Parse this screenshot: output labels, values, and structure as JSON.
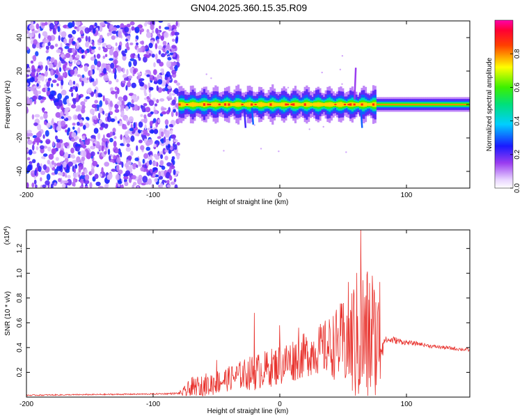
{
  "title": "GN04.2025.360.15.35.R09",
  "chart_data": [
    {
      "type": "heatmap",
      "title": "GN04.2025.360.15.35.R09",
      "xlabel": "Height of straight line (km)",
      "ylabel": "Frequency (Hz)",
      "xlim": [
        -200,
        150
      ],
      "ylim": [
        -50,
        50
      ],
      "xticks": [
        -200,
        -100,
        0,
        100
      ],
      "yticks": [
        -40,
        -20,
        0,
        20,
        40
      ],
      "colorbar": {
        "label": "Normalized spectral amplitude",
        "range": [
          0,
          1
        ],
        "ticks": [
          "0.0",
          "0.2",
          "0.4",
          "0.6",
          "0.8"
        ],
        "colormap": "rainbow (white-violet-blue-cyan-green-yellow-red-magenta)"
      },
      "regions": [
        {
          "name": "noise",
          "x_range": [
            -200,
            -80
          ],
          "freq_range": [
            -50,
            50
          ],
          "amplitude": "low (0.1-0.3)"
        },
        {
          "name": "signal band",
          "x_range": [
            -80,
            150
          ],
          "center_freq": 0,
          "half_width_hz": 3,
          "peak_amplitude": 1.0
        }
      ]
    },
    {
      "type": "line",
      "xlabel": "Height of straight line (km)",
      "ylabel": "SNR (10 * v/v)",
      "scale_label": "(x10",
      "scale_exp": "4",
      "scale_close": ")",
      "xlim": [
        -200,
        150
      ],
      "ylim": [
        0,
        1.35
      ],
      "xticks": [
        -200,
        -100,
        0,
        100
      ],
      "yticks": [
        0.2,
        0.4,
        0.6,
        0.8,
        1.0,
        1.2
      ],
      "color": "#e8322d",
      "envelope": {
        "x": [
          -200,
          -150,
          -100,
          -80,
          -75,
          -70,
          -60,
          -50,
          -40,
          -30,
          -20,
          -10,
          0,
          10,
          20,
          30,
          40,
          50,
          55,
          60,
          65,
          70,
          75,
          80,
          82,
          90,
          100,
          110,
          120,
          130,
          140,
          150
        ],
        "base": [
          0.015,
          0.02,
          0.025,
          0.03,
          0.04,
          0.06,
          0.09,
          0.12,
          0.15,
          0.18,
          0.2,
          0.23,
          0.26,
          0.3,
          0.34,
          0.38,
          0.41,
          0.44,
          0.45,
          0.47,
          0.48,
          0.48,
          0.46,
          0.44,
          0.46,
          0.46,
          0.44,
          0.43,
          0.41,
          0.4,
          0.39,
          0.38
        ],
        "amp": [
          0.005,
          0.005,
          0.006,
          0.008,
          0.05,
          0.1,
          0.1,
          0.1,
          0.1,
          0.12,
          0.15,
          0.15,
          0.17,
          0.18,
          0.18,
          0.2,
          0.25,
          0.35,
          0.45,
          0.55,
          0.6,
          0.6,
          0.5,
          0.4,
          0.03,
          0.03,
          0.02,
          0.015,
          0.015,
          0.015,
          0.015,
          0.015
        ]
      },
      "peaks": [
        {
          "x": 64,
          "y": 1.35
        },
        {
          "x": 54,
          "y": 0.93
        },
        {
          "x": 73,
          "y": 0.98
        },
        {
          "x": 79,
          "y": 0.93
        },
        {
          "x": 68,
          "y": 0.82
        },
        {
          "x": -20,
          "y": 0.68
        },
        {
          "x": -50,
          "y": 0.3
        },
        {
          "x": 0,
          "y": 0.58
        },
        {
          "x": 15,
          "y": 0.56
        }
      ]
    }
  ]
}
